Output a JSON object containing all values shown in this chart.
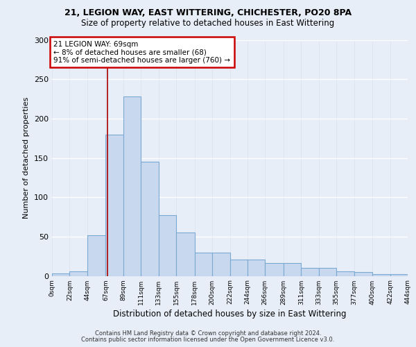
{
  "title_line1": "21, LEGION WAY, EAST WITTERING, CHICHESTER, PO20 8PA",
  "title_line2": "Size of property relative to detached houses in East Wittering",
  "xlabel": "Distribution of detached houses by size in East Wittering",
  "ylabel": "Number of detached properties",
  "bar_color": "#c8d8ee",
  "bar_edge_color": "#7aaad4",
  "annotation_box_edgecolor": "#cc0000",
  "annotation_text": "21 LEGION WAY: 69sqm\n← 8% of detached houses are smaller (68)\n91% of semi-detached houses are larger (760) →",
  "property_size_sqm": 69,
  "vline_color": "#aa0000",
  "ylim": [
    0,
    300
  ],
  "yticks": [
    0,
    50,
    100,
    150,
    200,
    250,
    300
  ],
  "bin_edges": [
    0,
    22,
    44,
    67,
    89,
    111,
    133,
    155,
    178,
    200,
    222,
    244,
    266,
    289,
    311,
    333,
    355,
    377,
    400,
    422,
    444
  ],
  "bin_labels": [
    "0sqm",
    "22sqm",
    "44sqm",
    "67sqm",
    "89sqm",
    "111sqm",
    "133sqm",
    "155sqm",
    "178sqm",
    "200sqm",
    "222sqm",
    "244sqm",
    "266sqm",
    "289sqm",
    "311sqm",
    "333sqm",
    "355sqm",
    "377sqm",
    "400sqm",
    "422sqm",
    "444sqm"
  ],
  "bar_heights": [
    3,
    6,
    52,
    180,
    228,
    145,
    77,
    55,
    30,
    30,
    21,
    21,
    16,
    16,
    10,
    10,
    6,
    5,
    2,
    2
  ],
  "footer_text1": "Contains HM Land Registry data © Crown copyright and database right 2024.",
  "footer_text2": "Contains public sector information licensed under the Open Government Licence v3.0.",
  "background_color": "#e8eef8",
  "grid_color": "#ffffff"
}
